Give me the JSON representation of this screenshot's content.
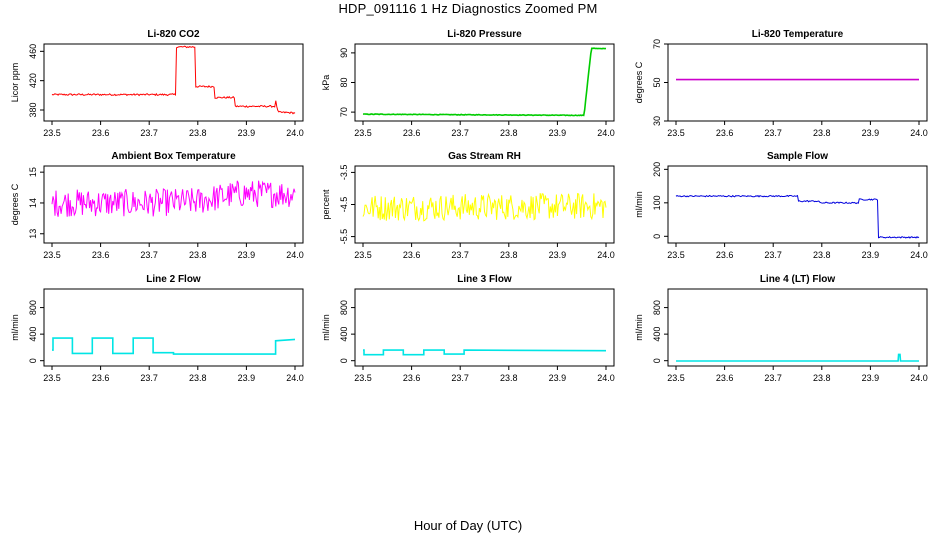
{
  "page": {
    "title": "HDP_091116  1 Hz Diagnostics Zoomed PM",
    "xlabel": "Hour of Day (UTC)"
  },
  "chart_data": [
    {
      "type": "line",
      "title": "Li-820 CO2",
      "ylabel": "Licor ppm",
      "color": "#ff0000",
      "xlim": [
        23.5,
        24.0
      ],
      "ylim": [
        365,
        470
      ],
      "x_ticks": [
        23.5,
        23.6,
        23.7,
        23.8,
        23.9,
        24.0
      ],
      "y_ticks": [
        380,
        420,
        460
      ],
      "noise": 1.2,
      "series": [
        {
          "x": [
            23.5,
            23.755,
            23.755,
            23.795,
            23.795,
            23.835,
            23.835,
            23.875,
            23.875,
            23.96,
            23.96,
            23.965,
            23.965,
            24.0
          ],
          "y": [
            401,
            401,
            466,
            466,
            412,
            412,
            397,
            397,
            385,
            385,
            393,
            377,
            377,
            376
          ]
        }
      ]
    },
    {
      "type": "line",
      "title": "Li-820 Pressure",
      "ylabel": "kPa",
      "color": "#00cc00",
      "xlim": [
        23.5,
        24.0
      ],
      "ylim": [
        67,
        93
      ],
      "x_ticks": [
        23.5,
        23.6,
        23.7,
        23.8,
        23.9,
        24.0
      ],
      "y_ticks": [
        70,
        80,
        90
      ],
      "noise": 0.1,
      "series": [
        {
          "x": [
            23.5,
            23.95,
            23.955,
            23.962,
            23.97,
            23.99,
            24.0
          ],
          "y": [
            69.3,
            68.9,
            68.9,
            80.0,
            91.5,
            91.5,
            91.4
          ]
        }
      ]
    },
    {
      "type": "line",
      "title": "Li-820 Temperature",
      "ylabel": "degrees C",
      "color": "#cc00cc",
      "xlim": [
        23.5,
        24.0
      ],
      "ylim": [
        30,
        70
      ],
      "x_ticks": [
        23.5,
        23.6,
        23.7,
        23.8,
        23.9,
        24.0
      ],
      "y_ticks": [
        30,
        50,
        70
      ],
      "noise": 0,
      "series": [
        {
          "x": [
            23.5,
            24.0
          ],
          "y": [
            51.5,
            51.5
          ]
        }
      ]
    },
    {
      "type": "line",
      "title": "Ambient Box Temperature",
      "ylabel": "degrees C",
      "color": "#ff00ff",
      "xlim": [
        23.5,
        24.0
      ],
      "ylim": [
        12.7,
        15.2
      ],
      "x_ticks": [
        23.5,
        23.6,
        23.7,
        23.8,
        23.9,
        24.0
      ],
      "y_ticks": [
        13.0,
        14.0,
        15.0
      ],
      "noise": 0.45,
      "series": [
        {
          "x": [
            23.5,
            23.7,
            23.8,
            23.88,
            24.0
          ],
          "y": [
            14.0,
            14.0,
            14.05,
            14.3,
            14.3
          ]
        }
      ]
    },
    {
      "type": "line",
      "title": "Gas Stream RH",
      "ylabel": "percent",
      "color": "#ffff00",
      "xlim": [
        23.5,
        24.0
      ],
      "ylim": [
        -5.7,
        -3.3
      ],
      "x_ticks": [
        23.5,
        23.6,
        23.7,
        23.8,
        23.9,
        24.0
      ],
      "y_ticks": [
        -5.5,
        -4.5,
        -3.5
      ],
      "noise": 0.42,
      "series": [
        {
          "x": [
            23.5,
            24.0
          ],
          "y": [
            -4.6,
            -4.55
          ]
        }
      ]
    },
    {
      "type": "line",
      "title": "Sample Flow",
      "ylabel": "ml/min",
      "color": "#0000dd",
      "xlim": [
        23.5,
        24.0
      ],
      "ylim": [
        -20,
        210
      ],
      "x_ticks": [
        23.5,
        23.6,
        23.7,
        23.8,
        23.9,
        24.0
      ],
      "y_ticks": [
        0,
        100,
        200
      ],
      "noise": 2,
      "series": [
        {
          "x": [
            23.5,
            23.75,
            23.75,
            23.795,
            23.795,
            23.875,
            23.875,
            23.915,
            23.915,
            24.0
          ],
          "y": [
            120,
            120,
            105,
            105,
            100,
            100,
            110,
            110,
            -3,
            -3
          ]
        }
      ]
    },
    {
      "type": "line",
      "title": "Line 2 Flow",
      "ylabel": "ml/min",
      "color": "#00e5e5",
      "xlim": [
        23.5,
        24.0
      ],
      "ylim": [
        -80,
        1080
      ],
      "x_ticks": [
        23.5,
        23.6,
        23.7,
        23.8,
        23.9,
        24.0
      ],
      "y_ticks": [
        0,
        400,
        800
      ],
      "noise": 0,
      "series": [
        {
          "x": [
            23.5,
            23.502,
            23.502,
            23.542,
            23.542,
            23.583,
            23.583,
            23.625,
            23.625,
            23.667,
            23.667,
            23.708,
            23.708,
            23.75,
            23.75,
            23.96,
            23.96,
            24.0
          ],
          "y": [
            160,
            160,
            340,
            340,
            110,
            110,
            340,
            340,
            110,
            110,
            340,
            340,
            120,
            120,
            100,
            100,
            300,
            320
          ]
        }
      ]
    },
    {
      "type": "line",
      "title": "Line 3 Flow",
      "ylabel": "ml/min",
      "color": "#00e5e5",
      "xlim": [
        23.5,
        24.0
      ],
      "ylim": [
        -80,
        1080
      ],
      "x_ticks": [
        23.5,
        23.6,
        23.7,
        23.8,
        23.9,
        24.0
      ],
      "y_ticks": [
        0,
        400,
        800
      ],
      "noise": 0,
      "series": [
        {
          "x": [
            23.5,
            23.502,
            23.502,
            23.542,
            23.542,
            23.583,
            23.583,
            23.625,
            23.625,
            23.667,
            23.667,
            23.708,
            23.708,
            24.0
          ],
          "y": [
            160,
            160,
            90,
            90,
            160,
            160,
            90,
            90,
            160,
            160,
            100,
            100,
            160,
            150
          ]
        }
      ]
    },
    {
      "type": "line",
      "title": "Line 4 (LT) Flow",
      "ylabel": "ml/min",
      "color": "#00e5e5",
      "xlim": [
        23.5,
        24.0
      ],
      "ylim": [
        -80,
        1080
      ],
      "x_ticks": [
        23.5,
        23.6,
        23.7,
        23.8,
        23.9,
        24.0
      ],
      "y_ticks": [
        0,
        400,
        800
      ],
      "noise": 0,
      "series": [
        {
          "x": [
            23.5,
            23.957,
            23.958,
            23.961,
            23.962,
            24.0
          ],
          "y": [
            -5,
            -5,
            95,
            95,
            -5,
            -5
          ]
        }
      ]
    }
  ]
}
